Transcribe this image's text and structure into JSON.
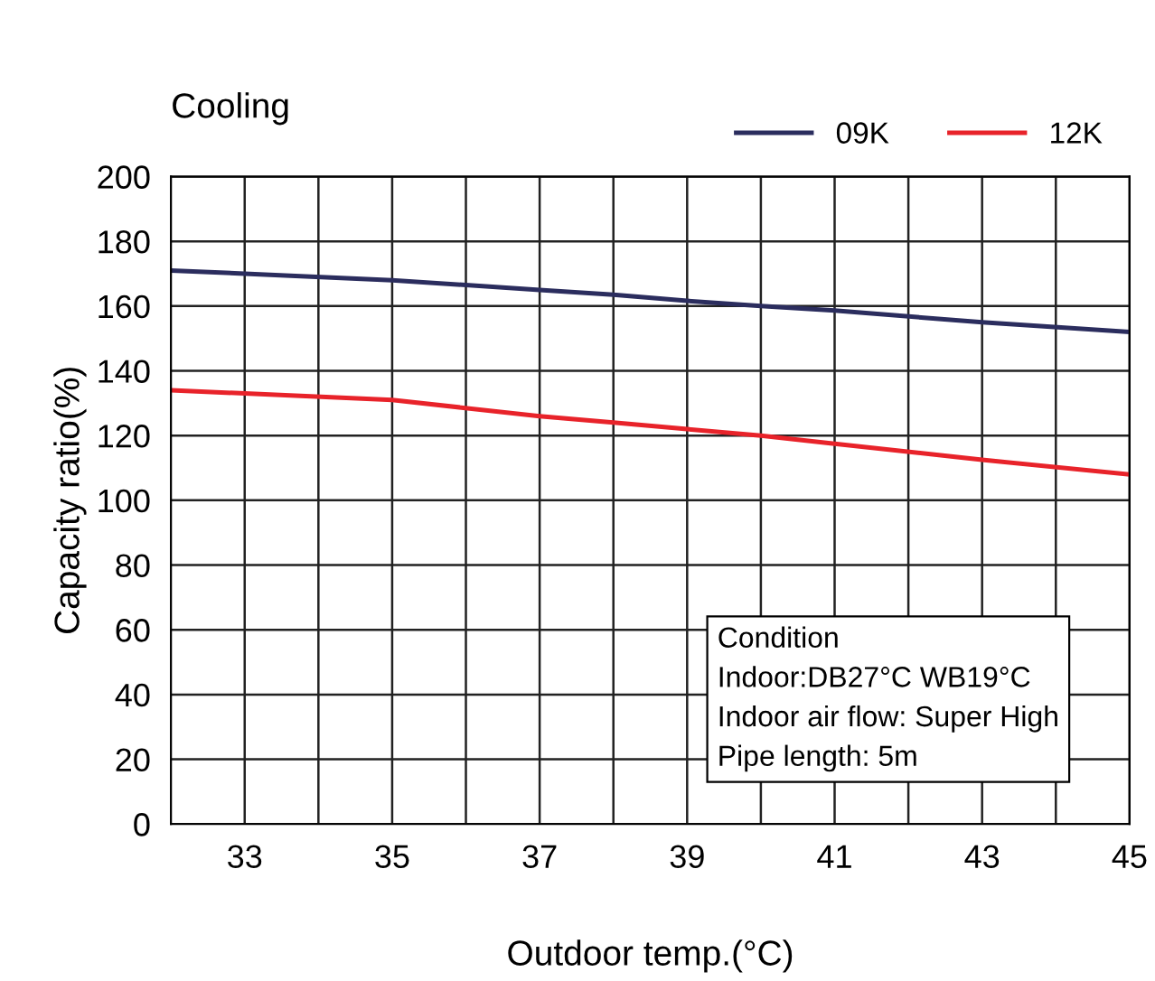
{
  "chart_data": {
    "type": "line",
    "title": "Cooling",
    "xlabel": "Outdoor temp.(°C)",
    "ylabel": "Capacity ratio(%)",
    "x": [
      32,
      33,
      35,
      37,
      38,
      39,
      40,
      41,
      43,
      45
    ],
    "series": [
      {
        "name": "09K",
        "color": "#2b2d5e",
        "values": [
          171,
          170,
          168,
          165,
          163.5,
          161.6,
          160,
          158.6,
          155,
          152
        ]
      },
      {
        "name": "12K",
        "color": "#e8232a",
        "values": [
          134,
          133,
          131,
          126,
          124,
          122,
          120,
          117.5,
          112.5,
          108
        ]
      }
    ],
    "xlim": [
      32,
      45
    ],
    "ylim": [
      0,
      200
    ],
    "xticks": [
      33,
      {
        "value": 34,
        "label": null
      },
      35,
      {
        "value": 36,
        "label": null
      },
      37,
      {
        "value": 38,
        "label": null
      },
      39,
      {
        "value": 40,
        "label": null
      },
      41,
      {
        "value": 42,
        "label": null
      },
      43,
      {
        "value": 44,
        "label": null
      },
      45
    ],
    "yticks": [
      0,
      20,
      40,
      60,
      80,
      100,
      120,
      140,
      160,
      180,
      200
    ],
    "grid": true,
    "legend": "top right",
    "marker": "none",
    "line_style": "solid",
    "annotations": [
      "Condition\nIndoor:DB27°C WB19°C\nIndoor air flow: Super High\nPipe length: 5m"
    ]
  }
}
